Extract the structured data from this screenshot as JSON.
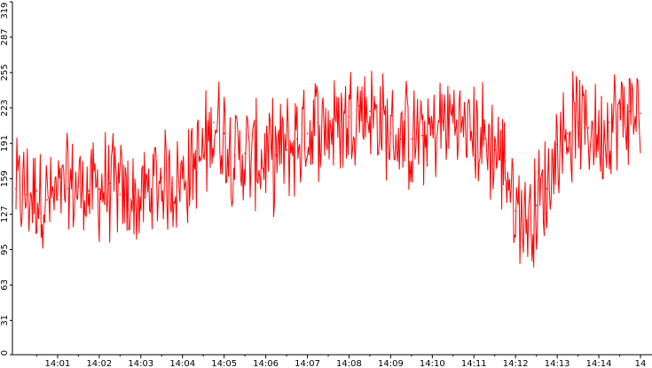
{
  "chart_data": {
    "type": "line",
    "title": "",
    "xlabel": "",
    "ylabel": "",
    "ylim": [
      0,
      319
    ],
    "grid": false,
    "legend": "none",
    "line_color": "#ff0000",
    "axis_color": "#000000",
    "y_ticks": [
      {
        "value": 0,
        "label": "0"
      },
      {
        "value": 31,
        "label": "31"
      },
      {
        "value": 63,
        "label": "63"
      },
      {
        "value": 95,
        "label": "95"
      },
      {
        "value": 127,
        "label": "127"
      },
      {
        "value": 159,
        "label": "159"
      },
      {
        "value": 191,
        "label": "191"
      },
      {
        "value": 223,
        "label": "223"
      },
      {
        "value": 255,
        "label": "255"
      },
      {
        "value": 287,
        "label": "287"
      },
      {
        "value": 319,
        "label": "319"
      }
    ],
    "x_ticks": [
      {
        "minute": 1,
        "label": "14:01"
      },
      {
        "minute": 2,
        "label": "14:02"
      },
      {
        "minute": 3,
        "label": "14:03"
      },
      {
        "minute": 4,
        "label": "14:04"
      },
      {
        "minute": 5,
        "label": "14:05"
      },
      {
        "minute": 6,
        "label": "14:06"
      },
      {
        "minute": 7,
        "label": "14:07"
      },
      {
        "minute": 8,
        "label": "14:08"
      },
      {
        "minute": 9,
        "label": "14:09"
      },
      {
        "minute": 10,
        "label": "14:10"
      },
      {
        "minute": 11,
        "label": "14:11"
      },
      {
        "minute": 12,
        "label": "14:12"
      },
      {
        "minute": 13,
        "label": "14:13"
      },
      {
        "minute": 14,
        "label": "14:14"
      },
      {
        "minute": 15,
        "label": "14"
      }
    ],
    "x_range_minutes": [
      0.0,
      15.0
    ],
    "series": [
      {
        "color": "#ff0000",
        "x": [
          0.0,
          0.25,
          0.5,
          0.75,
          1.0,
          1.25,
          1.5,
          1.75,
          2.0,
          2.25,
          2.5,
          2.75,
          3.0,
          3.25,
          3.5,
          3.75,
          4.0,
          4.25,
          4.5,
          4.75,
          5.0,
          5.25,
          5.5,
          5.75,
          6.0,
          6.25,
          6.5,
          6.75,
          7.0,
          7.25,
          7.5,
          7.75,
          8.0,
          8.25,
          8.5,
          8.75,
          9.0,
          9.25,
          9.5,
          9.75,
          10.0,
          10.25,
          10.5,
          10.75,
          11.0,
          11.25,
          11.5,
          11.75,
          12.0,
          12.25,
          12.5,
          12.75,
          13.0,
          13.25,
          13.5,
          13.75,
          14.0,
          14.25,
          14.5,
          14.75,
          15.0
        ],
        "y": [
          150,
          145,
          148,
          140,
          140,
          150,
          152,
          148,
          150,
          155,
          145,
          140,
          138,
          150,
          160,
          155,
          160,
          170,
          180,
          210,
          200,
          180,
          182,
          178,
          175,
          180,
          185,
          195,
          200,
          210,
          205,
          210,
          215,
          225,
          220,
          210,
          200,
          195,
          195,
          198,
          200,
          210,
          215,
          205,
          200,
          195,
          185,
          175,
          130,
          125,
          135,
          150,
          190,
          200,
          210,
          205,
          200,
          210,
          215,
          220,
          218
        ]
      }
    ]
  }
}
